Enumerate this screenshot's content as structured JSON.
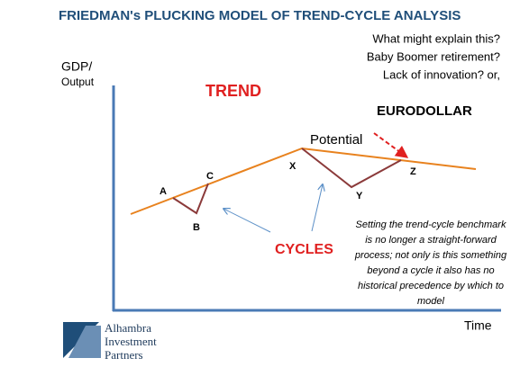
{
  "title": "FRIEDMAN's PLUCKING MODEL OF TREND-CYCLE ANALYSIS",
  "questions": [
    "What might explain this?",
    "Baby Boomer retirement?",
    "Lack of innovation? or,"
  ],
  "axes": {
    "y_label": [
      "GDP/",
      "Output"
    ],
    "x_label": "Time"
  },
  "labels": {
    "trend": "TREND",
    "eurodollar": "EURODOLLAR",
    "potential": "Potential",
    "cycles": "CYCLES"
  },
  "points": [
    "A",
    "B",
    "C",
    "X",
    "Y",
    "Z"
  ],
  "note": [
    "Setting the trend-cycle benchmark",
    "is no longer a straight-forward",
    "process; not only is this something",
    "beyond a cycle it also has no",
    "historical precedence by which to",
    "model"
  ],
  "logo": [
    "Alhambra",
    "Investment",
    "Partners"
  ]
}
